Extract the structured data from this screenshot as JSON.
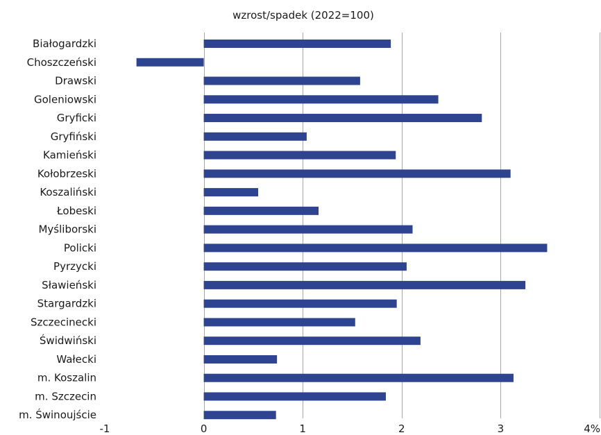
{
  "chart_data": {
    "type": "bar",
    "orientation": "horizontal",
    "title": "wzrost/spadek (2022=100)",
    "categories": [
      "Białogardzki",
      "Choszczeński",
      "Drawski",
      "Goleniowski",
      "Gryficki",
      "Gryfiński",
      "Kamieński",
      "Kołobrzeski",
      "Koszaliński",
      "Łobeski",
      "Myśliborski",
      "Policki",
      "Pyrzycki",
      "Sławieński",
      "Stargardzki",
      "Szczecinecki",
      "Świdwiński",
      "Wałecki",
      "m. Koszalin",
      "m. Szczecin",
      "m. Świnoujście"
    ],
    "values": [
      1.89,
      -0.68,
      1.58,
      2.37,
      2.81,
      1.04,
      1.94,
      3.1,
      0.55,
      1.16,
      2.11,
      3.47,
      2.05,
      3.25,
      1.95,
      1.53,
      2.19,
      0.74,
      3.13,
      1.84,
      0.73
    ],
    "xlim": [
      -1,
      4
    ],
    "x_ticks": [
      -1,
      0,
      1,
      2,
      3,
      4
    ],
    "x_tick_labels": [
      "-1",
      "0",
      "1",
      "2",
      "3",
      "4%"
    ],
    "grid": "vertical",
    "bar_color": "#2e4490"
  }
}
